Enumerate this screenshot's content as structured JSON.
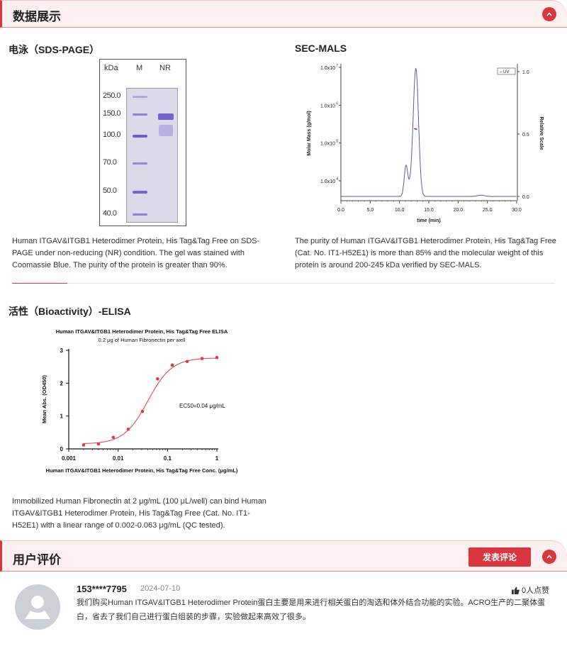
{
  "sections": {
    "data_display": {
      "title": "数据展示"
    },
    "reviews": {
      "title": "用户评价",
      "post_button": "发表评论"
    }
  },
  "gel": {
    "title": "电泳（SDS-PAGE）",
    "header": {
      "kda": "kDa",
      "m": "M",
      "nr": "NR"
    },
    "markers": [
      "250.0",
      "150.0",
      "100.0",
      "70.0",
      "50.0",
      "40.0"
    ],
    "description": "Human ITGAV&ITGB1 Heterodimer Protein, His Tag&Tag Free on SDS-PAGE under non-reducing (NR) condition. The gel was stained with Coomassie Blue. The purity of the protein is greater than 90%."
  },
  "sec": {
    "title": "SEC-MALS",
    "description": "The purity of Human ITGAV&ITGB1 Heterodimer Protein, His Tag&Tag Free (Cat. No. IT1-H52E1) is more than 85% and the molecular weight of this protein is around 200-245 kDa verified by SEC-MALS."
  },
  "elisa": {
    "title": "活性（Bioactivity）-ELISA",
    "description": "Immobilized Human Fibronectin at 2 μg/mL (100 μL/well) can bind Human ITGAV&ITGB1 Heterodimer Protein, His Tag&Tag Free (Cat. No. IT1-H52E1) with a linear range of 0.002-0.063 μg/mL (QC tested)."
  },
  "review": {
    "user": "153****7795",
    "date": "2024-07-10",
    "likes": "0人点赞",
    "text": "我们购买Human ITGAV&ITGB1 Heterodimer Protein蛋白主要是用来进行相关蛋白的淘选和体外结合功能的实验。ACRO生产的二聚体蛋白，省去了我们自己进行蛋白组装的步骤，实验做起来高效了很多。"
  },
  "colors": {
    "accent": "#d9363e",
    "band_bg": "#fdf0f0",
    "uv_line": "#5a5aa0",
    "elisa": "#e0394a"
  },
  "icons": {
    "collapse": "chevron-up-icon",
    "like": "thumbs-up-icon",
    "avatar": "user-avatar-icon"
  },
  "chart_data": [
    {
      "type": "line",
      "xlabel": "time (min)",
      "ylabel": "Molar Mass (g/mol)",
      "y2label": "Relative Scale",
      "xlim": [
        0,
        30
      ],
      "xticks": [
        "0.0",
        "5.0",
        "10.0",
        "15.0",
        "20.0",
        "25.0",
        "30.0"
      ],
      "ylim_log": [
        10000.0,
        10000000.0
      ],
      "yticks": [
        "1.0x10",
        "1.0x10",
        "1.0x10",
        "1.0x10"
      ],
      "ytick_exponents": [
        "7",
        "6",
        "5",
        "4"
      ],
      "y2lim": [
        0,
        1
      ],
      "y2ticks": [
        "0.0",
        "0.5",
        "1.0"
      ],
      "legend": "UV",
      "legend_placement": "top-right",
      "series": [
        {
          "name": "UV",
          "axis": "relative",
          "peaks": [
            {
              "time": 11.1,
              "value": 0.23
            },
            {
              "time": 12.8,
              "value": 1.0
            },
            {
              "time": 23.9,
              "value": 0.01
            }
          ],
          "baseline": 0.0
        },
        {
          "name": "molar mass",
          "axis": "log",
          "x": [
            12.5,
            13.0
          ],
          "y": [
            240000,
            230000
          ]
        }
      ]
    },
    {
      "type": "scatter",
      "title": "Human ITGAV&ITGB1 Heterodimer Protein, His Tag&Tag Free ELISA",
      "subtitle": "0.2 μg of Human Fibronectin per well",
      "xlabel": "Human ITGAV&ITGB1 Heterodimer Protein, His Tag&Tag Free Conc. (μg/mL)",
      "ylabel": "Mean Abs. (OD450)",
      "xscale": "log",
      "xlim": [
        0.001,
        1
      ],
      "xticks": [
        "0.001",
        "0.01",
        "0.1",
        "1"
      ],
      "ylim": [
        0,
        3
      ],
      "yticks": [
        "0",
        "1",
        "2",
        "3"
      ],
      "annotation": "EC50=0.04 μg/mL",
      "x": [
        0.002,
        0.004,
        0.008,
        0.016,
        0.031,
        0.063,
        0.125,
        0.25,
        0.5,
        1
      ],
      "y": [
        0.12,
        0.15,
        0.35,
        0.6,
        1.14,
        2.13,
        2.55,
        2.66,
        2.75,
        2.78
      ],
      "fit": {
        "bottom": 0.15,
        "top": 2.77,
        "ec50": 0.04,
        "hill": 1.8
      }
    }
  ]
}
